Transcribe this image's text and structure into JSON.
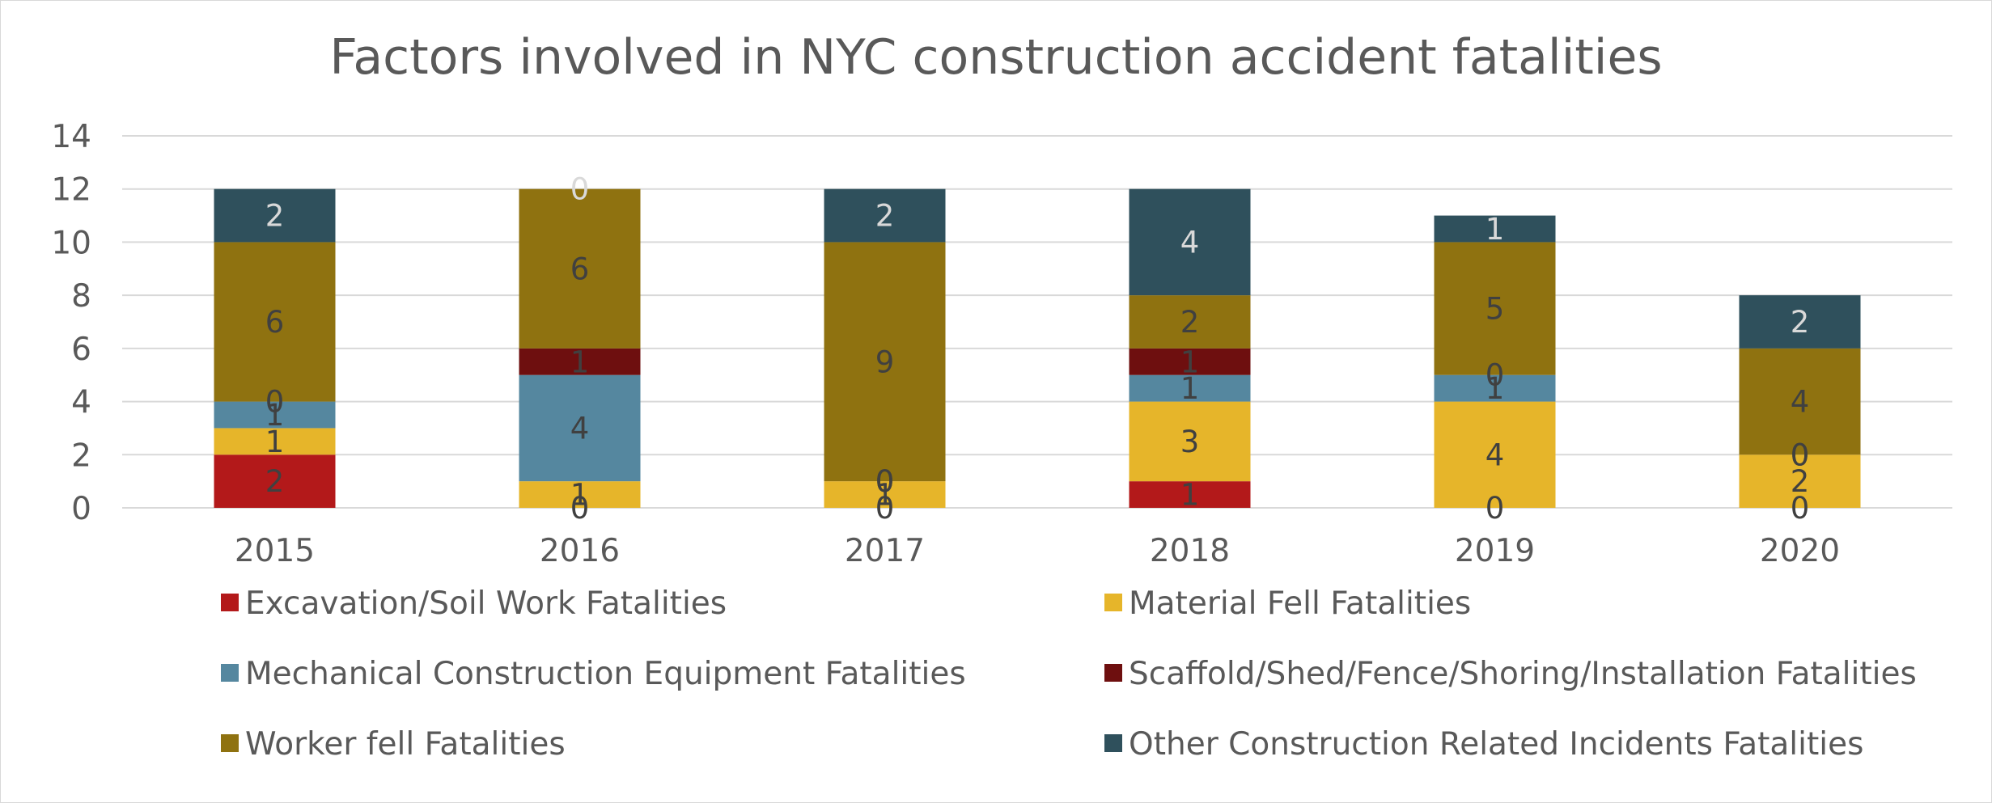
{
  "chart_data": {
    "type": "bar",
    "stacked": true,
    "title": "Factors involved in NYC construction accident fatalities",
    "categories": [
      "2015",
      "2016",
      "2017",
      "2018",
      "2019",
      "2020"
    ],
    "ylim": [
      0,
      14
    ],
    "yticks": [
      0,
      2,
      4,
      6,
      8,
      10,
      12,
      14
    ],
    "grid": true,
    "legend_position": "bottom",
    "series": [
      {
        "name": "Excavation/Soil Work Fatalities",
        "color": "#b3191a",
        "values": [
          2,
          0,
          0,
          1,
          0,
          0
        ],
        "label_color": "#404040"
      },
      {
        "name": "Material Fell Fatalities",
        "color": "#e6b52a",
        "values": [
          1,
          1,
          1,
          3,
          4,
          2
        ],
        "label_color": "#404040"
      },
      {
        "name": "Mechanical Construction Equipment Fatalities",
        "color": "#55879f",
        "values": [
          1,
          4,
          0,
          1,
          1,
          0
        ],
        "label_color": "#404040"
      },
      {
        "name": "Scaffold/Shed/Fence/Shoring/Installation Fatalities",
        "color": "#6e0f0f",
        "values": [
          0,
          1,
          0,
          1,
          0,
          0
        ],
        "label_color": "#404040"
      },
      {
        "name": "Worker fell Fatalities",
        "color": "#8f7210",
        "values": [
          6,
          6,
          9,
          2,
          5,
          4
        ],
        "label_color": "#404040"
      },
      {
        "name": "Other Construction Related Incidents Fatalities",
        "color": "#2f505c",
        "values": [
          2,
          0,
          2,
          4,
          1,
          2
        ],
        "label_color": "#d9d9d9"
      }
    ],
    "data_labels": [
      [
        "2",
        "1",
        "1",
        "0",
        "6",
        "2"
      ],
      [
        "0",
        "1",
        "4",
        "1",
        "6",
        "0"
      ],
      [
        "0",
        "1",
        "0",
        "0",
        "9",
        "2"
      ],
      [
        "1",
        "3",
        "1",
        "1",
        "2",
        "4"
      ],
      [
        "0",
        "4",
        "1",
        "0",
        "5",
        "1"
      ],
      [
        "0",
        "2",
        "0",
        "0",
        "4",
        "2"
      ]
    ]
  }
}
